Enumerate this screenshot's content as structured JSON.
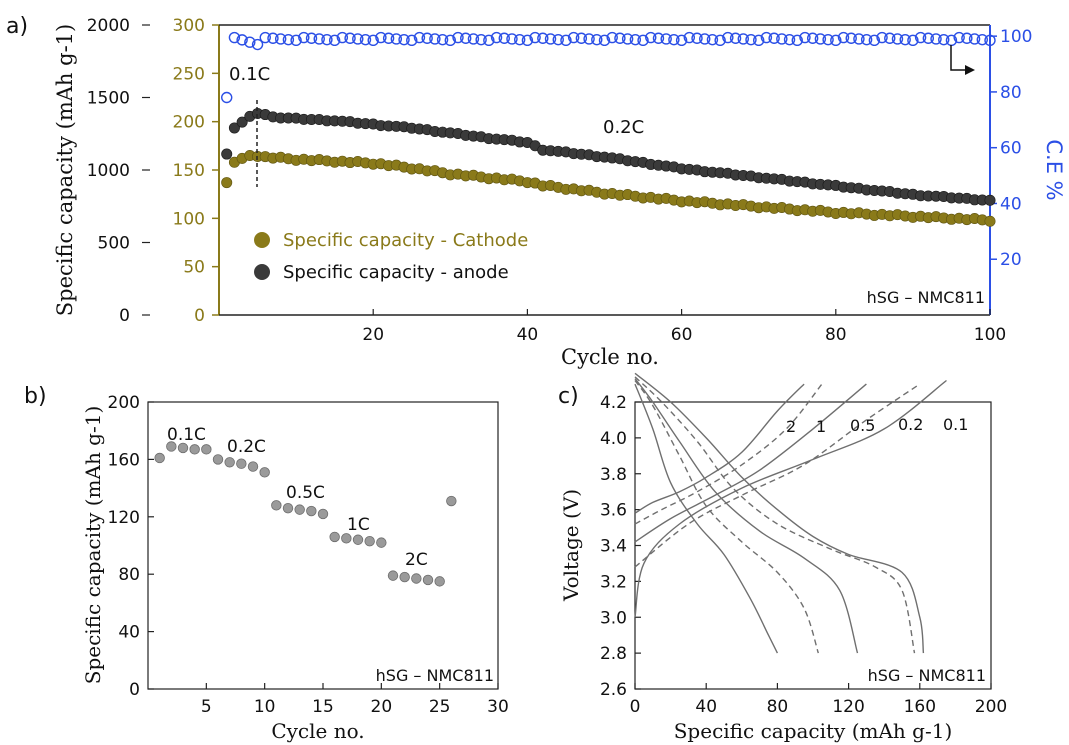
{
  "colors": {
    "cathode": "#8a7a1a",
    "anode": "#3a3a3a",
    "ce": "#2b4fe6",
    "gray_marker": "#9a9a9a",
    "curve": "#6f6f6f"
  },
  "chart_data": [
    {
      "panel_label": "a)",
      "type": "scatter",
      "xlabel": "Cycle no.",
      "ylabel_left": "Specific capacity (mAh g-1)",
      "ylabel_right": "C.E %",
      "xlim": [
        0,
        100
      ],
      "x_ticks": [
        "20",
        "40",
        "60",
        "80",
        "100"
      ],
      "y_anode_lim": [
        0,
        2000
      ],
      "y_anode_ticks": [
        "0",
        "500",
        "1000",
        "1500",
        "2000"
      ],
      "y_cathode_lim": [
        0,
        300
      ],
      "y_cathode_ticks": [
        "0",
        "50",
        "100",
        "150",
        "200",
        "250",
        "300"
      ],
      "y_ce_lim": [
        0,
        104
      ],
      "y_ce_ticks": [
        "20",
        "40",
        "60",
        "80",
        "100"
      ],
      "annotations": {
        "rate1": "0.1C",
        "rate2": "0.2C",
        "label": "hSG – NMC811"
      },
      "legend": {
        "cathode": "Specific capacity - Cathode",
        "anode": "Specific capacity - anode"
      },
      "series_cathode_keypoints": [
        [
          1,
          137
        ],
        [
          2,
          158
        ],
        [
          3,
          162
        ],
        [
          4,
          165
        ],
        [
          5,
          164
        ],
        [
          10,
          161
        ],
        [
          15,
          159
        ],
        [
          20,
          157
        ],
        [
          25,
          152
        ],
        [
          30,
          146
        ],
        [
          35,
          142
        ],
        [
          40,
          138
        ],
        [
          42,
          134
        ],
        [
          50,
          126
        ],
        [
          60,
          118
        ],
        [
          70,
          112
        ],
        [
          80,
          106
        ],
        [
          90,
          102
        ],
        [
          100,
          98
        ]
      ],
      "series_anode_keypoints": [
        [
          1,
          1110
        ],
        [
          2,
          1290
        ],
        [
          3,
          1330
        ],
        [
          4,
          1370
        ],
        [
          5,
          1390
        ],
        [
          8,
          1360
        ],
        [
          15,
          1340
        ],
        [
          25,
          1290
        ],
        [
          35,
          1220
        ],
        [
          40,
          1190
        ],
        [
          42,
          1140
        ],
        [
          50,
          1090
        ],
        [
          60,
          1010
        ],
        [
          70,
          950
        ],
        [
          80,
          890
        ],
        [
          90,
          830
        ],
        [
          100,
          790
        ]
      ],
      "series_ce_keypoints": [
        [
          1,
          78
        ],
        [
          2,
          99.5
        ],
        [
          5,
          97
        ],
        [
          6,
          99.5
        ],
        [
          100,
          99
        ]
      ]
    },
    {
      "panel_label": "b)",
      "type": "scatter",
      "xlabel": "Cycle no.",
      "ylabel": "Specific capacity (mAh g-1)",
      "xlim": [
        0,
        30
      ],
      "x_ticks": [
        "5",
        "10",
        "15",
        "20",
        "25",
        "30"
      ],
      "ylim": [
        0,
        200
      ],
      "y_ticks": [
        "0",
        "40",
        "80",
        "120",
        "160",
        "200"
      ],
      "rate_labels": [
        "0.1C",
        "0.2C",
        "0.5C",
        "1C",
        "2C"
      ],
      "label": "hSG – NMC811",
      "x": [
        1,
        2,
        3,
        4,
        5,
        6,
        7,
        8,
        9,
        10,
        11,
        12,
        13,
        14,
        15,
        16,
        17,
        18,
        19,
        20,
        21,
        22,
        23,
        24,
        25,
        26
      ],
      "y": [
        161,
        169,
        168,
        167,
        167,
        160,
        158,
        157,
        155,
        151,
        128,
        126,
        125,
        124,
        122,
        106,
        105,
        104,
        103,
        102,
        79,
        78,
        77,
        76,
        75,
        131
      ]
    },
    {
      "panel_label": "c)",
      "type": "line",
      "xlabel": "Specific capacity (mAh g-1)",
      "ylabel": "Voltage (V)",
      "xlim": [
        0,
        200
      ],
      "x_ticks": [
        "0",
        "40",
        "80",
        "120",
        "160",
        "200"
      ],
      "ylim": [
        2.6,
        4.2
      ],
      "y_ticks": [
        "2.6",
        "2.8",
        "3.0",
        "3.2",
        "3.4",
        "3.6",
        "3.8",
        "4.0",
        "4.2"
      ],
      "rate_labels": [
        "2",
        "1",
        "0.5",
        "0.2",
        "0.1"
      ],
      "label": "hSG – NMC811",
      "series": [
        {
          "rate": "2",
          "style": "solid",
          "charge": [
            [
              0,
              3.58
            ],
            [
              10,
              3.64
            ],
            [
              25,
              3.7
            ],
            [
              40,
              3.78
            ],
            [
              60,
              3.92
            ],
            [
              80,
              4.15
            ],
            [
              95,
              4.3
            ]
          ],
          "discharge": [
            [
              0,
              4.3
            ],
            [
              10,
              4.05
            ],
            [
              20,
              3.75
            ],
            [
              35,
              3.52
            ],
            [
              50,
              3.35
            ],
            [
              65,
              3.1
            ],
            [
              75,
              2.9
            ],
            [
              80,
              2.8
            ]
          ]
        },
        {
          "rate": "1",
          "style": "dashed",
          "charge": [
            [
              0,
              3.52
            ],
            [
              15,
              3.6
            ],
            [
              35,
              3.7
            ],
            [
              60,
              3.85
            ],
            [
              85,
              4.05
            ],
            [
              105,
              4.3
            ]
          ],
          "discharge": [
            [
              0,
              4.32
            ],
            [
              10,
              4.18
            ],
            [
              25,
              3.9
            ],
            [
              40,
              3.62
            ],
            [
              60,
              3.42
            ],
            [
              80,
              3.25
            ],
            [
              95,
              3.05
            ],
            [
              103,
              2.8
            ]
          ]
        },
        {
          "rate": "0.5",
          "style": "solid",
          "charge": [
            [
              0,
              3.42
            ],
            [
              20,
              3.55
            ],
            [
              45,
              3.68
            ],
            [
              70,
              3.82
            ],
            [
              100,
              4.05
            ],
            [
              130,
              4.3
            ]
          ],
          "discharge": [
            [
              0,
              4.33
            ],
            [
              10,
              4.2
            ],
            [
              25,
              3.98
            ],
            [
              45,
              3.7
            ],
            [
              70,
              3.48
            ],
            [
              95,
              3.33
            ],
            [
              115,
              3.15
            ],
            [
              125,
              2.8
            ]
          ]
        },
        {
          "rate": "0.2",
          "style": "dashed",
          "charge": [
            [
              0,
              3.28
            ],
            [
              30,
              3.52
            ],
            [
              60,
              3.68
            ],
            [
              95,
              3.85
            ],
            [
              130,
              4.1
            ],
            [
              160,
              4.3
            ]
          ],
          "discharge": [
            [
              0,
              4.34
            ],
            [
              15,
              4.2
            ],
            [
              35,
              3.98
            ],
            [
              55,
              3.72
            ],
            [
              80,
              3.52
            ],
            [
              110,
              3.38
            ],
            [
              135,
              3.28
            ],
            [
              150,
              3.15
            ],
            [
              157,
              2.8
            ]
          ]
        },
        {
          "rate": "0.1",
          "style": "solid",
          "charge": [
            [
              0,
              3.0
            ],
            [
              5,
              3.3
            ],
            [
              25,
              3.52
            ],
            [
              60,
              3.72
            ],
            [
              100,
              3.88
            ],
            [
              140,
              4.05
            ],
            [
              175,
              4.32
            ]
          ],
          "discharge": [
            [
              0,
              4.36
            ],
            [
              20,
              4.2
            ],
            [
              40,
              4.0
            ],
            [
              60,
              3.78
            ],
            [
              80,
              3.6
            ],
            [
              100,
              3.45
            ],
            [
              120,
              3.35
            ],
            [
              150,
              3.25
            ],
            [
              160,
              3.0
            ],
            [
              162,
              2.8
            ]
          ]
        }
      ]
    }
  ]
}
